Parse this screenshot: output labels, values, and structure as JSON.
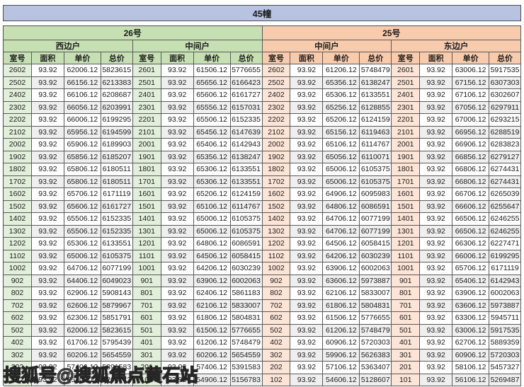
{
  "title": "45幢",
  "watermark": "搜狐号@搜狐焦点黄石站",
  "column_headers": [
    "室号",
    "面积",
    "单价",
    "总价"
  ],
  "buildings": [
    {
      "name": "26号"
    },
    {
      "name": "25号"
    }
  ],
  "colors": {
    "title_bar": "#b7c3e1",
    "green_header": "#c6e0b4",
    "orange_header": "#f8cbad",
    "green_room_cell": "#e2efda",
    "orange_room_cell": "#fce4d6",
    "alt_row": "#efefef",
    "border": "#5a5a5a"
  },
  "groups": [
    {
      "building": "26号",
      "unit": "西边户",
      "rows": [
        [
          "2602",
          "93.92",
          "62006.12",
          "5823615"
        ],
        [
          "2502",
          "93.92",
          "66156.12",
          "6213383"
        ],
        [
          "2402",
          "93.92",
          "66106.12",
          "6208687"
        ],
        [
          "2302",
          "93.92",
          "66056.12",
          "6203991"
        ],
        [
          "2202",
          "93.92",
          "66006.12",
          "6199295"
        ],
        [
          "2102",
          "93.92",
          "65956.12",
          "6194599"
        ],
        [
          "2002",
          "93.92",
          "65906.12",
          "6189903"
        ],
        [
          "1902",
          "93.92",
          "65856.12",
          "6185207"
        ],
        [
          "1802",
          "93.92",
          "65806.12",
          "6180511"
        ],
        [
          "1702",
          "93.92",
          "65806.12",
          "6180511"
        ],
        [
          "1602",
          "93.92",
          "65706.12",
          "6171119"
        ],
        [
          "1502",
          "93.92",
          "65606.12",
          "6161727"
        ],
        [
          "1402",
          "93.92",
          "65506.12",
          "6152335"
        ],
        [
          "1302",
          "93.92",
          "65506.12",
          "6152335"
        ],
        [
          "1202",
          "93.92",
          "65306.12",
          "6133551"
        ],
        [
          "1102",
          "93.92",
          "65006.12",
          "6105375"
        ],
        [
          "1002",
          "93.92",
          "64706.12",
          "6077199"
        ],
        [
          "902",
          "93.92",
          "64406.12",
          "6049023"
        ],
        [
          "802",
          "93.92",
          "62906.12",
          "5908143"
        ],
        [
          "702",
          "93.92",
          "62606.12",
          "5879967"
        ],
        [
          "602",
          "93.92",
          "62306.12",
          "5851791"
        ],
        [
          "502",
          "93.92",
          "62006.12",
          "5823615"
        ],
        [
          "402",
          "93.92",
          "61706.12",
          "5795439"
        ],
        [
          "302",
          "93.92",
          "60206.12",
          "5654559"
        ],
        [
          "202",
          "93.92",
          "57406.12",
          "5391583"
        ],
        [
          "102",
          "93.92",
          "55406.12",
          "5203743"
        ]
      ]
    },
    {
      "building": "26号",
      "unit": "中间户",
      "rows": [
        [
          "2601",
          "93.92",
          "61506.12",
          "5776655"
        ],
        [
          "2501",
          "93.92",
          "65656.12",
          "6166423"
        ],
        [
          "2401",
          "93.92",
          "65606.12",
          "6161727"
        ],
        [
          "2301",
          "93.92",
          "65556.12",
          "6157031"
        ],
        [
          "2201",
          "93.92",
          "65506.12",
          "6152335"
        ],
        [
          "2101",
          "93.92",
          "65456.12",
          "6147639"
        ],
        [
          "2001",
          "93.92",
          "65406.12",
          "6142943"
        ],
        [
          "1901",
          "93.92",
          "65356.12",
          "6138247"
        ],
        [
          "1801",
          "93.92",
          "65306.12",
          "6133551"
        ],
        [
          "1701",
          "93.92",
          "65306.12",
          "6133551"
        ],
        [
          "1601",
          "93.92",
          "65206.12",
          "6124159"
        ],
        [
          "1501",
          "93.92",
          "65106.12",
          "6114767"
        ],
        [
          "1401",
          "93.92",
          "65006.12",
          "6105375"
        ],
        [
          "1301",
          "93.92",
          "65006.12",
          "6105375"
        ],
        [
          "1201",
          "93.92",
          "64806.12",
          "6086591"
        ],
        [
          "1101",
          "93.92",
          "64506.12",
          "6058415"
        ],
        [
          "1001",
          "93.92",
          "64206.12",
          "6030239"
        ],
        [
          "901",
          "93.92",
          "63906.12",
          "6002063"
        ],
        [
          "801",
          "93.92",
          "62406.12",
          "5861183"
        ],
        [
          "701",
          "93.92",
          "62106.12",
          "5833007"
        ],
        [
          "601",
          "93.92",
          "61806.12",
          "5804831"
        ],
        [
          "501",
          "93.92",
          "61506.12",
          "5776655"
        ],
        [
          "401",
          "93.92",
          "61206.12",
          "5748479"
        ],
        [
          "301",
          "93.92",
          "60206.12",
          "5654559"
        ],
        [
          "201",
          "93.92",
          "57406.12",
          "5391583"
        ],
        [
          "101",
          "93.92",
          "54906.12",
          "5156783"
        ]
      ]
    },
    {
      "building": "25号",
      "unit": "中间户",
      "rows": [
        [
          "2602",
          "93.92",
          "61206.12",
          "5748479"
        ],
        [
          "2502",
          "93.92",
          "65356.12",
          "6138247"
        ],
        [
          "2402",
          "93.92",
          "65306.12",
          "6133551"
        ],
        [
          "2302",
          "93.92",
          "65256.12",
          "6128855"
        ],
        [
          "2202",
          "93.92",
          "65206.12",
          "6124159"
        ],
        [
          "2102",
          "93.92",
          "65156.12",
          "6119463"
        ],
        [
          "2002",
          "93.92",
          "65106.12",
          "6114767"
        ],
        [
          "1902",
          "93.92",
          "65056.12",
          "6110071"
        ],
        [
          "1802",
          "93.92",
          "65006.12",
          "6105375"
        ],
        [
          "1702",
          "93.92",
          "65006.12",
          "6105375"
        ],
        [
          "1602",
          "93.92",
          "64906.12",
          "6095983"
        ],
        [
          "1502",
          "93.92",
          "64806.12",
          "6086591"
        ],
        [
          "1402",
          "93.92",
          "64706.12",
          "6077199"
        ],
        [
          "1302",
          "93.92",
          "64706.12",
          "6077199"
        ],
        [
          "1202",
          "93.92",
          "64506.12",
          "6058415"
        ],
        [
          "1102",
          "93.92",
          "64206.12",
          "6030239"
        ],
        [
          "1002",
          "93.92",
          "63906.12",
          "6002063"
        ],
        [
          "902",
          "93.92",
          "63606.12",
          "5973887"
        ],
        [
          "802",
          "93.92",
          "62106.12",
          "5833007"
        ],
        [
          "702",
          "93.92",
          "61806.12",
          "5804831"
        ],
        [
          "602",
          "93.92",
          "61506.12",
          "5776655"
        ],
        [
          "502",
          "93.92",
          "61206.12",
          "5748479"
        ],
        [
          "402",
          "93.92",
          "60906.12",
          "5720303"
        ],
        [
          "302",
          "93.92",
          "59906.12",
          "5626383"
        ],
        [
          "202",
          "93.92",
          "57106.12",
          "5363407"
        ],
        [
          "102",
          "93.92",
          "54606.12",
          "5128607"
        ]
      ]
    },
    {
      "building": "25号",
      "unit": "东边户",
      "rows": [
        [
          "2601",
          "93.92",
          "63006.12",
          "5917535"
        ],
        [
          "2501",
          "93.92",
          "67156.12",
          "6307303"
        ],
        [
          "2401",
          "93.92",
          "67106.12",
          "6302607"
        ],
        [
          "2301",
          "93.92",
          "67056.12",
          "6297911"
        ],
        [
          "2201",
          "93.92",
          "67006.12",
          "6293215"
        ],
        [
          "2101",
          "93.92",
          "66956.12",
          "6288519"
        ],
        [
          "2001",
          "93.92",
          "66906.12",
          "6283823"
        ],
        [
          "1901",
          "93.92",
          "66856.12",
          "6279127"
        ],
        [
          "1801",
          "93.92",
          "66806.12",
          "6274431"
        ],
        [
          "1701",
          "93.92",
          "66806.12",
          "6274431"
        ],
        [
          "1601",
          "93.92",
          "66706.12",
          "6265039"
        ],
        [
          "1501",
          "93.92",
          "66606.12",
          "6255647"
        ],
        [
          "1401",
          "93.92",
          "66506.12",
          "6246255"
        ],
        [
          "1301",
          "93.92",
          "66506.12",
          "6246255"
        ],
        [
          "1201",
          "93.92",
          "66306.12",
          "6227471"
        ],
        [
          "1101",
          "93.92",
          "66006.12",
          "6199295"
        ],
        [
          "1001",
          "93.92",
          "65706.12",
          "6171119"
        ],
        [
          "901",
          "93.92",
          "65406.12",
          "6142943"
        ],
        [
          "801",
          "93.92",
          "63906.12",
          "6002063"
        ],
        [
          "701",
          "93.92",
          "63606.12",
          "5973887"
        ],
        [
          "601",
          "93.92",
          "63306.12",
          "5945711"
        ],
        [
          "501",
          "93.92",
          "63006.12",
          "5917535"
        ],
        [
          "401",
          "93.92",
          "62706.12",
          "5889359"
        ],
        [
          "301",
          "93.92",
          "60906.12",
          "5720303"
        ],
        [
          "201",
          "93.92",
          "58106.12",
          "5457327"
        ],
        [
          "101",
          "93.92",
          "56106.12",
          "5269487"
        ]
      ]
    }
  ]
}
